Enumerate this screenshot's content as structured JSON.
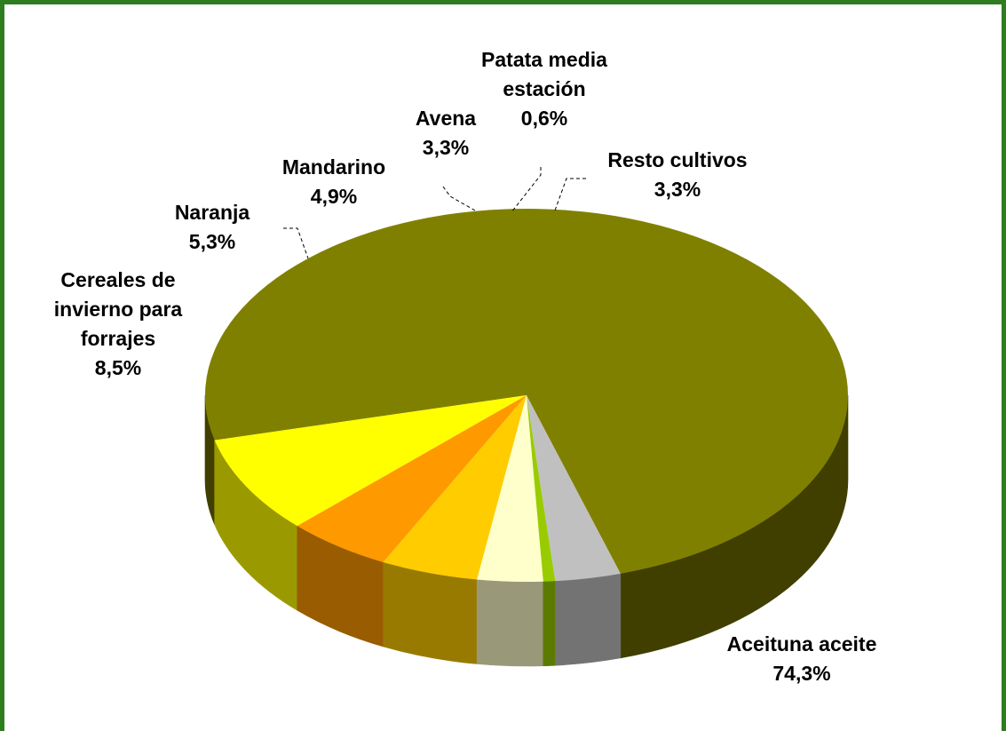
{
  "chart_data": {
    "type": "pie",
    "title": "",
    "three_d": true,
    "legend": "none",
    "slices": [
      {
        "name": "Aceituna aceite",
        "value": 74.3,
        "label": "74,3%",
        "color": "#808000",
        "side_color": "#403f00"
      },
      {
        "name": "Cereales de invierno para forrajes",
        "value": 8.5,
        "label": "8,5%",
        "color": "#ffff00",
        "side_color": "#9a9a00"
      },
      {
        "name": "Naranja",
        "value": 5.3,
        "label": "5,3%",
        "color": "#ff9900",
        "side_color": "#995c00"
      },
      {
        "name": "Mandarino",
        "value": 4.9,
        "label": "4,9%",
        "color": "#ffcc00",
        "side_color": "#997a00"
      },
      {
        "name": "Avena",
        "value": 3.3,
        "label": "3,3%",
        "color": "#ffffcc",
        "side_color": "#99997a"
      },
      {
        "name": "Patata media estación",
        "value": 0.6,
        "label": "0,6%",
        "color": "#99cc00",
        "side_color": "#5c7a00"
      },
      {
        "name": "Resto cultivos",
        "value": 3.3,
        "label": "3,3%",
        "color": "#c0c0c0",
        "side_color": "#737373"
      }
    ],
    "label_lines": [
      [
        "Aceituna aceite",
        "74,3%"
      ],
      [
        "Cereales de",
        "invierno para",
        "forrajes",
        "8,5%"
      ],
      [
        "Naranja",
        "5,3%"
      ],
      [
        "Mandarino",
        "4,9%"
      ],
      [
        "Avena",
        "3,3%"
      ],
      [
        "Patata media",
        "estación",
        "0,6%"
      ],
      [
        "Resto cultivos",
        "3,3%"
      ]
    ]
  }
}
